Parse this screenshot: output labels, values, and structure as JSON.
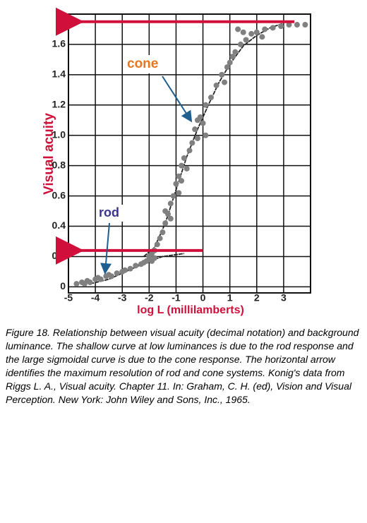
{
  "chart_data": {
    "type": "scatter",
    "xlabel": "log L (millilamberts)",
    "ylabel": "Visual acuity",
    "xlim": [
      -5,
      4
    ],
    "ylim": [
      -0.04,
      1.8
    ],
    "xticks": [
      -5,
      -4,
      -3,
      -2,
      -1,
      0,
      1,
      2,
      3
    ],
    "yticks": [
      0,
      0.2,
      0.4,
      0.6,
      0.8,
      {
        "value": 1,
        "label": "1.0"
      },
      1.2,
      1.4,
      1.6
    ],
    "grid": true,
    "series": [
      {
        "color": "#808080",
        "x": [
          -4.7,
          -4.5,
          -4.4,
          -4.3,
          -4.2,
          -4.0,
          -3.9,
          -3.8,
          -3.6,
          -3.5,
          -3.4,
          -3.2,
          -3.0,
          -2.9,
          -2.7,
          -2.5,
          -2.3,
          -2.2,
          -2.1,
          -2.0,
          -1.9,
          -1.8,
          -2.0,
          -1.9,
          -1.8,
          -1.7,
          -1.6,
          -1.5,
          -1.4,
          -1.3,
          -1.2,
          -1.1,
          -1.0,
          -0.9,
          -0.8,
          -0.7,
          -0.5,
          -0.4,
          -0.3,
          -0.2,
          -0.1,
          0,
          0.1,
          0.3,
          0.5,
          0.7,
          0.9,
          1.0,
          1.2,
          1.4,
          1.6,
          1.8,
          2.0,
          2.3,
          2.6,
          2.9,
          3.2,
          3.5,
          3.8,
          -1.4,
          -1.2,
          -0.8,
          -0.6,
          -0.9,
          -0.2,
          0.1,
          0.8,
          1.1,
          2.2,
          1.3,
          1.5
        ],
        "values": [
          0.02,
          0.03,
          0.02,
          0.04,
          0.03,
          0.05,
          0.06,
          0.05,
          0.07,
          0.08,
          0.07,
          0.09,
          0.1,
          0.11,
          0.12,
          0.14,
          0.15,
          0.16,
          0.17,
          0.18,
          0.17,
          0.19,
          0.2,
          0.22,
          0.24,
          0.28,
          0.32,
          0.36,
          0.42,
          0.48,
          0.55,
          0.6,
          0.68,
          0.73,
          0.8,
          0.85,
          0.9,
          0.95,
          1.04,
          1.1,
          1.12,
          1.08,
          1.2,
          1.25,
          1.33,
          1.4,
          1.45,
          1.48,
          1.55,
          1.6,
          1.63,
          1.67,
          1.68,
          1.7,
          1.71,
          1.72,
          1.73,
          1.73,
          1.73,
          0.5,
          0.45,
          0.7,
          0.78,
          0.62,
          0.98,
          1.0,
          1.35,
          1.52,
          1.65,
          1.7,
          1.68
        ]
      }
    ],
    "curves": [
      {
        "color": "#222222",
        "x": [
          -4.2,
          -3.5,
          -3.0,
          -2.5,
          -2.0,
          -1.5,
          -0.7
        ],
        "values": [
          0.02,
          0.05,
          0.09,
          0.13,
          0.17,
          0.2,
          0.22
        ]
      },
      {
        "color": "#222222",
        "x": [
          -2.2,
          -1.8,
          -1.4,
          -1.0,
          -0.6,
          -0.2,
          0.2,
          0.6,
          1.0,
          1.5,
          2.0,
          2.5,
          3.0
        ],
        "values": [
          0.2,
          0.26,
          0.42,
          0.64,
          0.86,
          1.04,
          1.2,
          1.35,
          1.47,
          1.59,
          1.66,
          1.71,
          1.74
        ]
      }
    ],
    "arrows": [
      {
        "color": "#d0103a",
        "y": 1.75,
        "x": [
          3.4,
          -5
        ]
      },
      {
        "color": "#d0103a",
        "y": 0.24,
        "x": [
          0,
          -5
        ]
      }
    ],
    "annotations": [
      {
        "text": "cone",
        "color": "#e8761e"
      },
      {
        "text": "rod",
        "color": "#3b3590"
      }
    ],
    "caption": [
      "Figure 18. Relationship between visual acuity (decimal notation) and background",
      "luminance. The shallow curve at low luminances is due to the rod response and",
      "the large sigmoidal curve is due to the cone response. The horizontal arrow",
      "identifies the maximum resolution of rod and cone systems. Konig's data from",
      "Riggs L. A., Visual acuity. Chapter 11. In: Graham, C. H. (ed), Vision and Visual",
      "Perception. New York: John Wiley and Sons, Inc., 1965."
    ]
  }
}
